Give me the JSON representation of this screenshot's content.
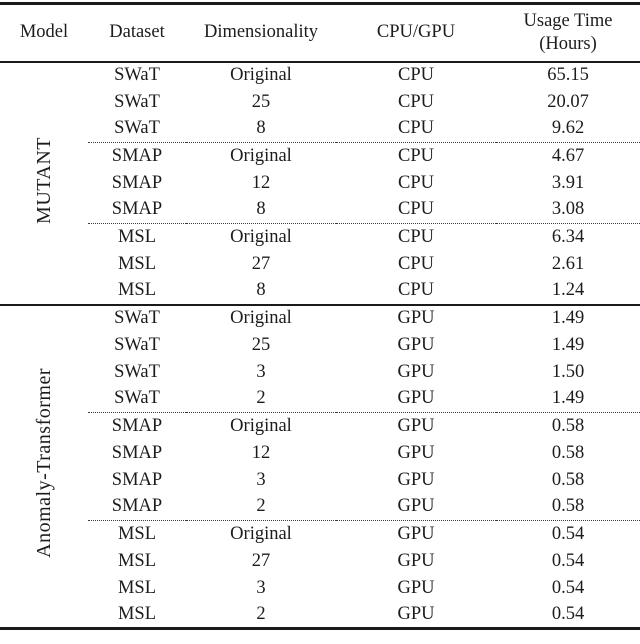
{
  "header": {
    "model": "Model",
    "dataset": "Dataset",
    "dimensionality": "Dimensionality",
    "cpu_gpu": "CPU/GPU",
    "usage_time_line1": "Usage Time",
    "usage_time_line2": "(Hours)"
  },
  "sections": [
    {
      "model_label": "MUTANT",
      "rows": [
        {
          "dataset": "SWaT",
          "dimensionality": "Original",
          "processor": "CPU",
          "usage_time": "65.15"
        },
        {
          "dataset": "SWaT",
          "dimensionality": "25",
          "processor": "CPU",
          "usage_time": "20.07"
        },
        {
          "dataset": "SWaT",
          "dimensionality": "8",
          "processor": "CPU",
          "usage_time": "9.62"
        },
        {
          "dataset": "SMAP",
          "dimensionality": "Original",
          "processor": "CPU",
          "usage_time": "4.67"
        },
        {
          "dataset": "SMAP",
          "dimensionality": "12",
          "processor": "CPU",
          "usage_time": "3.91"
        },
        {
          "dataset": "SMAP",
          "dimensionality": "8",
          "processor": "CPU",
          "usage_time": "3.08"
        },
        {
          "dataset": "MSL",
          "dimensionality": "Original",
          "processor": "CPU",
          "usage_time": "6.34"
        },
        {
          "dataset": "MSL",
          "dimensionality": "27",
          "processor": "CPU",
          "usage_time": "2.61"
        },
        {
          "dataset": "MSL",
          "dimensionality": "8",
          "processor": "CPU",
          "usage_time": "1.24"
        }
      ]
    },
    {
      "model_label": "Anomaly-Transformer",
      "rows": [
        {
          "dataset": "SWaT",
          "dimensionality": "Original",
          "processor": "GPU",
          "usage_time": "1.49"
        },
        {
          "dataset": "SWaT",
          "dimensionality": "25",
          "processor": "GPU",
          "usage_time": "1.49"
        },
        {
          "dataset": "SWaT",
          "dimensionality": "3",
          "processor": "GPU",
          "usage_time": "1.50"
        },
        {
          "dataset": "SWaT",
          "dimensionality": "2",
          "processor": "GPU",
          "usage_time": "1.49"
        },
        {
          "dataset": "SMAP",
          "dimensionality": "Original",
          "processor": "GPU",
          "usage_time": "0.58"
        },
        {
          "dataset": "SMAP",
          "dimensionality": "12",
          "processor": "GPU",
          "usage_time": "0.58"
        },
        {
          "dataset": "SMAP",
          "dimensionality": "3",
          "processor": "GPU",
          "usage_time": "0.58"
        },
        {
          "dataset": "SMAP",
          "dimensionality": "2",
          "processor": "GPU",
          "usage_time": "0.58"
        },
        {
          "dataset": "MSL",
          "dimensionality": "Original",
          "processor": "GPU",
          "usage_time": "0.54"
        },
        {
          "dataset": "MSL",
          "dimensionality": "27",
          "processor": "GPU",
          "usage_time": "0.54"
        },
        {
          "dataset": "MSL",
          "dimensionality": "3",
          "processor": "GPU",
          "usage_time": "0.54"
        },
        {
          "dataset": "MSL",
          "dimensionality": "2",
          "processor": "GPU",
          "usage_time": "0.54"
        }
      ]
    }
  ]
}
